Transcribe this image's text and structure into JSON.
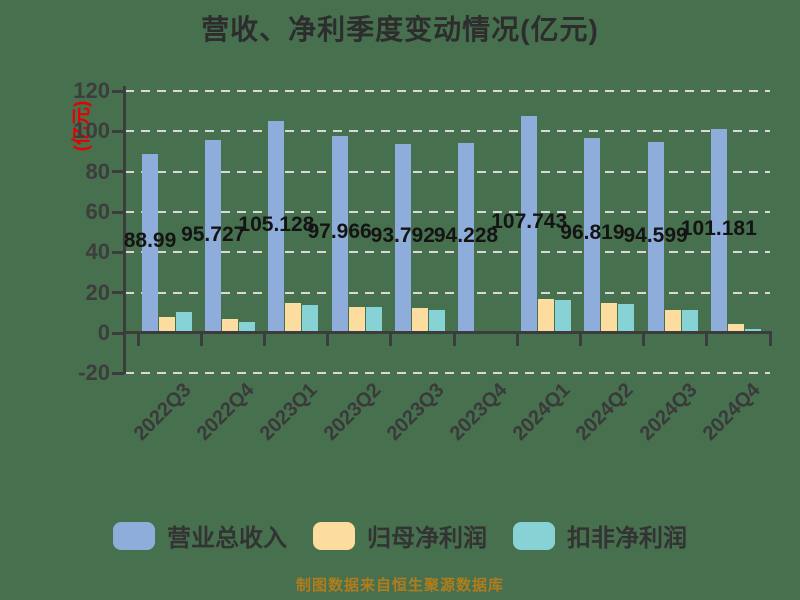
{
  "page": {
    "background_color": "#47704F"
  },
  "footer": "制图数据来自恒生聚源数据库",
  "colors": {
    "background": "#47704F",
    "title_text": "#2D2D2D",
    "axis_line": "#3C3C3C",
    "grid_line": "#D8D8D8",
    "tick_label": "#3D3D3D",
    "category_label": "#3A3A3A",
    "data_label": "#141414",
    "y_axis_unit": "#E60000",
    "legend_text": "#333333",
    "footer_text": "#B07D1C",
    "series_revenue": "#8FADDB",
    "series_net_profit": "#FCDC9F",
    "series_non_gaap": "#86D2D5"
  },
  "chart_data": {
    "type": "bar",
    "title": "营收、净利季度变动情况(亿元)",
    "y_axis_label": "(亿元)",
    "xlabel": "",
    "ylabel": "(亿元)",
    "ylim": [
      -20,
      120
    ],
    "y_ticks": [
      120,
      100,
      80,
      60,
      40,
      20,
      0,
      -20
    ],
    "grid": true,
    "grid_style": "dashed",
    "legend_position": "bottom",
    "categories": [
      "2022Q3",
      "2022Q4",
      "2023Q1",
      "2023Q2",
      "2023Q3",
      "2023Q4",
      "2024Q1",
      "2024Q2",
      "2024Q3",
      "2024Q4"
    ],
    "series": [
      {
        "key": "total-revenue",
        "name": "营业总收入",
        "color": "#8FADDB",
        "values": [
          88.99,
          95.727,
          105.128,
          97.966,
          93.792,
          94.228,
          107.743,
          96.819,
          94.599,
          101.181
        ]
      },
      {
        "key": "net-profit-attributable",
        "name": "归母净利润",
        "color": "#FCDC9F",
        "values": [
          8.1,
          7.0,
          15.1,
          13.0,
          12.4,
          0.8,
          16.7,
          14.7,
          11.4,
          4.5
        ]
      },
      {
        "key": "non-gaap-net-profit",
        "name": "扣非净利润",
        "color": "#86D2D5",
        "values": [
          10.3,
          5.3,
          13.9,
          13.0,
          11.3,
          0.6,
          16.3,
          14.3,
          11.2,
          2.0
        ]
      }
    ],
    "data_labels": [
      "88.99",
      "95.727",
      "105.128",
      "97.966",
      "93.792",
      "94.228",
      "107.743",
      "96.819",
      "94.599",
      "101.181"
    ]
  }
}
